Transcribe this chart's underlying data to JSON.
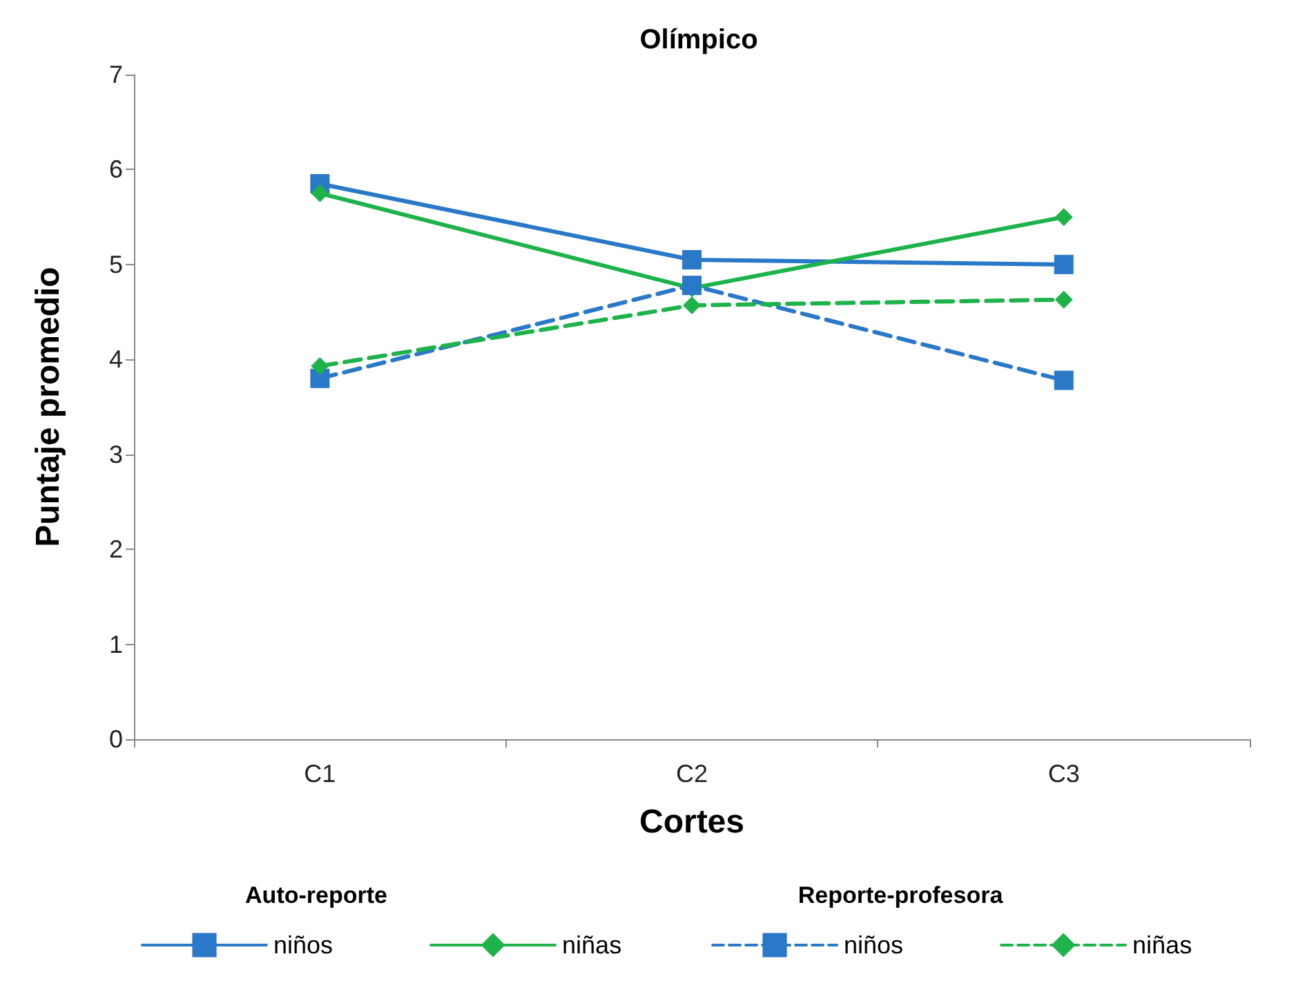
{
  "chart_data": {
    "type": "line",
    "title": "Olímpico",
    "xlabel": "Cortes",
    "ylabel": "Puntaje promedio",
    "categories": [
      "C1",
      "C2",
      "C3"
    ],
    "series": [
      {
        "name": "niños",
        "color": "#2a78c8",
        "values": [
          5.85,
          5.05,
          5.0
        ],
        "marker": "square",
        "line_style": "solid"
      },
      {
        "name": "niñas",
        "color": "#1db34a",
        "values": [
          5.75,
          4.75,
          5.5
        ],
        "marker": "diamond",
        "line_style": "solid"
      },
      {
        "name": "niños",
        "color": "#2a78c8",
        "values": [
          3.8,
          4.78,
          3.78
        ],
        "marker": "square",
        "line_style": "dashed"
      },
      {
        "name": "niñas",
        "color": "#1db34a",
        "values": [
          3.93,
          4.57,
          4.63
        ],
        "marker": "diamond",
        "line_style": "dashed"
      }
    ],
    "annotations": [
      "Auto-reporte",
      "Reporte-profesora"
    ],
    "ylim": [
      0,
      7
    ],
    "yticks": [
      0,
      1,
      2,
      3,
      4,
      5,
      6,
      7
    ],
    "grid": false,
    "legend": "bottom"
  }
}
